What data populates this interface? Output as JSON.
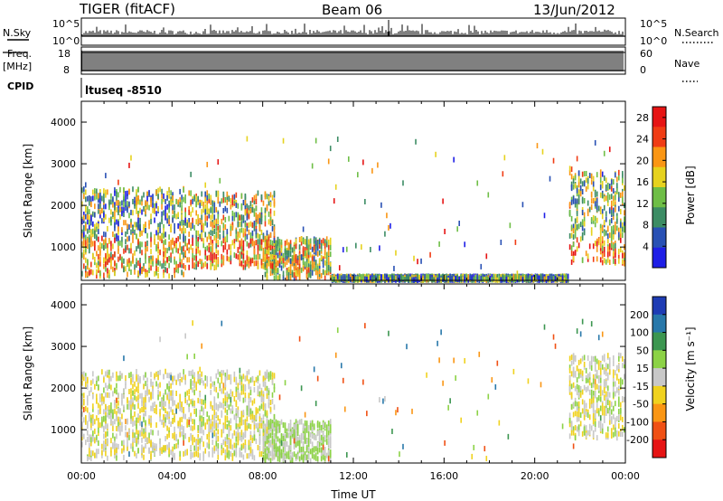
{
  "header": {
    "station": "TIGER (fitACF)",
    "beam": "Beam 06",
    "date": "13/Jun/2012"
  },
  "strips": {
    "nsky_label": "N.Sky",
    "nsky_ticks": [
      "10^5",
      "10^0"
    ],
    "nsearch_label": "N.Search",
    "freq_label_line1": "Freq.",
    "freq_label_line2": "[MHz]",
    "freq_ticks": [
      "18",
      "8"
    ],
    "nave_label": "Nave",
    "nave_ticks": [
      "60",
      "0"
    ],
    "cpid_label": "CPID",
    "cpid_value": "ltuseq -8510"
  },
  "chart_data": [
    {
      "type": "heatmap",
      "title": "",
      "panel": "power",
      "ylabel": "Slant Range [km]",
      "xlabel": "",
      "xlim": [
        "00:00",
        "24:00"
      ],
      "ylim": [
        200,
        4500
      ],
      "yticks": [
        "1000",
        "2000",
        "3000",
        "4000"
      ],
      "colorbar": {
        "label": "Power [dB]",
        "ticks": [
          "4",
          "8",
          "12",
          "16",
          "20",
          "24",
          "28"
        ],
        "range": [
          0,
          30
        ],
        "colors": [
          "#1e1ee6",
          "#2850b4",
          "#3c8c64",
          "#6ebe46",
          "#e6d21e",
          "#fa9614",
          "#f03c14",
          "#e61414"
        ]
      },
      "regions": [
        {
          "x": [
            0,
            4.5
          ],
          "y": [
            300,
            2400
          ],
          "value": 12
        },
        {
          "x": [
            4.5,
            8.5
          ],
          "y": [
            500,
            2300
          ],
          "value": 14
        },
        {
          "x": [
            8.0,
            11.0
          ],
          "y": [
            250,
            1200
          ],
          "value": 10
        },
        {
          "x": [
            21.5,
            24
          ],
          "y": [
            600,
            2800
          ],
          "value": 14
        },
        {
          "x": [
            11.0,
            21.5
          ],
          "y": [
            200,
            300
          ],
          "value": 4
        }
      ]
    },
    {
      "type": "heatmap",
      "title": "",
      "panel": "velocity",
      "ylabel": "Slant Range [km]",
      "xlabel": "Time UT",
      "xlim": [
        "00:00",
        "24:00"
      ],
      "ylim": [
        200,
        4500
      ],
      "xticks": [
        "00:00",
        "04:00",
        "08:00",
        "12:00",
        "16:00",
        "20:00",
        "00:00"
      ],
      "yticks": [
        "1000",
        "2000",
        "3000",
        "4000"
      ],
      "colorbar": {
        "label": "Velocity [m s⁻¹]",
        "ticks": [
          "200",
          "100",
          "50",
          "15",
          "-15",
          "-50",
          "-100",
          "-200"
        ],
        "colors": [
          "#1e3cb4",
          "#2878aa",
          "#3c9650",
          "#8cd246",
          "#c8c8c8",
          "#f0d21e",
          "#fa9614",
          "#f05014",
          "#e61414"
        ]
      },
      "regions": [
        {
          "x": [
            0,
            8.5
          ],
          "y": [
            300,
            2400
          ],
          "value": -5
        },
        {
          "x": [
            8.0,
            11.0
          ],
          "y": [
            250,
            1200
          ],
          "value": 20
        },
        {
          "x": [
            21.5,
            24
          ],
          "y": [
            800,
            2800
          ],
          "value": 0
        }
      ]
    }
  ],
  "colors": {
    "axis": "#000000",
    "background": "#ffffff"
  }
}
